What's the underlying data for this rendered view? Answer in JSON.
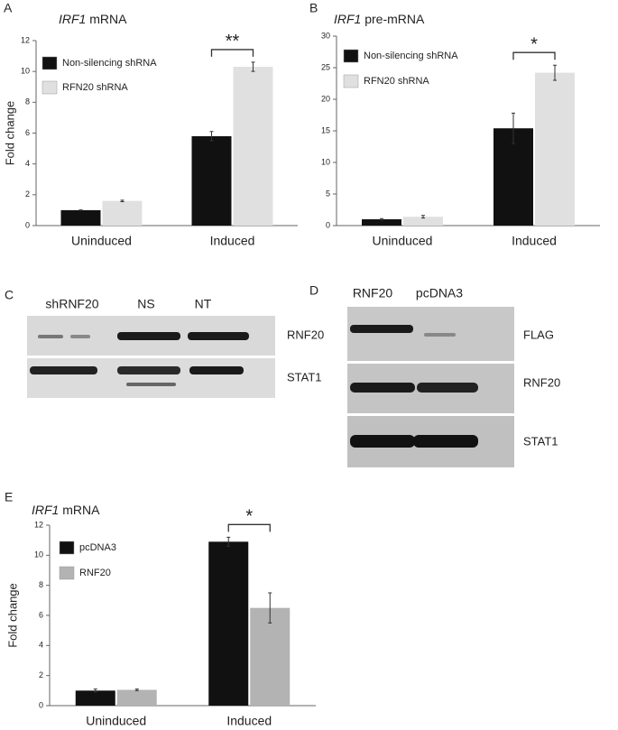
{
  "chart_data": [
    {
      "panel_label": "A",
      "type": "bar",
      "title": "IRF1 mRNA",
      "ylabel": "Fold change",
      "categories": [
        "Uninduced",
        "Induced"
      ],
      "series": [
        {
          "name": "Non-silencing shRNA",
          "color": "#111111",
          "values": [
            1.0,
            5.8
          ],
          "errors": [
            0.02,
            0.3
          ]
        },
        {
          "name": "RFN20 shRNA",
          "color": "#e0e0e0",
          "values": [
            1.6,
            10.3
          ],
          "errors": [
            0.05,
            0.3
          ]
        }
      ],
      "ylim": [
        0,
        12
      ],
      "yticks": [
        0,
        2,
        4,
        6,
        8,
        10,
        12
      ],
      "annotation": "**"
    },
    {
      "panel_label": "B",
      "type": "bar",
      "title": "IRF1 pre-mRNA",
      "categories": [
        "Uninduced",
        "Induced"
      ],
      "series": [
        {
          "name": "Non-silencing shRNA",
          "color": "#111111",
          "values": [
            1.0,
            15.4
          ],
          "errors": [
            0.1,
            2.4
          ]
        },
        {
          "name": "RFN20 shRNA",
          "color": "#e0e0e0",
          "values": [
            1.4,
            24.2
          ],
          "errors": [
            0.2,
            1.2
          ]
        }
      ],
      "ylim": [
        0,
        30
      ],
      "yticks": [
        0,
        5,
        10,
        15,
        20,
        25,
        30
      ],
      "annotation": "*"
    },
    {
      "panel_label": "E",
      "type": "bar",
      "title": "IRF1 mRNA",
      "ylabel": "Fold change",
      "categories": [
        "Uninduced",
        "Induced"
      ],
      "series": [
        {
          "name": "pcDNA3",
          "color": "#111111",
          "values": [
            1.0,
            10.9
          ],
          "errors": [
            0.1,
            0.3
          ]
        },
        {
          "name": "RNF20",
          "color": "#b3b3b3",
          "values": [
            1.05,
            6.5
          ],
          "errors": [
            0.05,
            1.0
          ]
        }
      ],
      "ylim": [
        0,
        12
      ],
      "yticks": [
        0,
        2,
        4,
        6,
        8,
        10,
        12
      ],
      "annotation": "*"
    }
  ],
  "blots": [
    {
      "panel_label": "C",
      "lanes": [
        "shRNF20",
        "NS",
        "NT"
      ],
      "rows": [
        "RNF20",
        "STAT1"
      ]
    },
    {
      "panel_label": "D",
      "lanes": [
        "RNF20",
        "pcDNA3"
      ],
      "rows": [
        "FLAG",
        "RNF20",
        "STAT1"
      ]
    }
  ]
}
